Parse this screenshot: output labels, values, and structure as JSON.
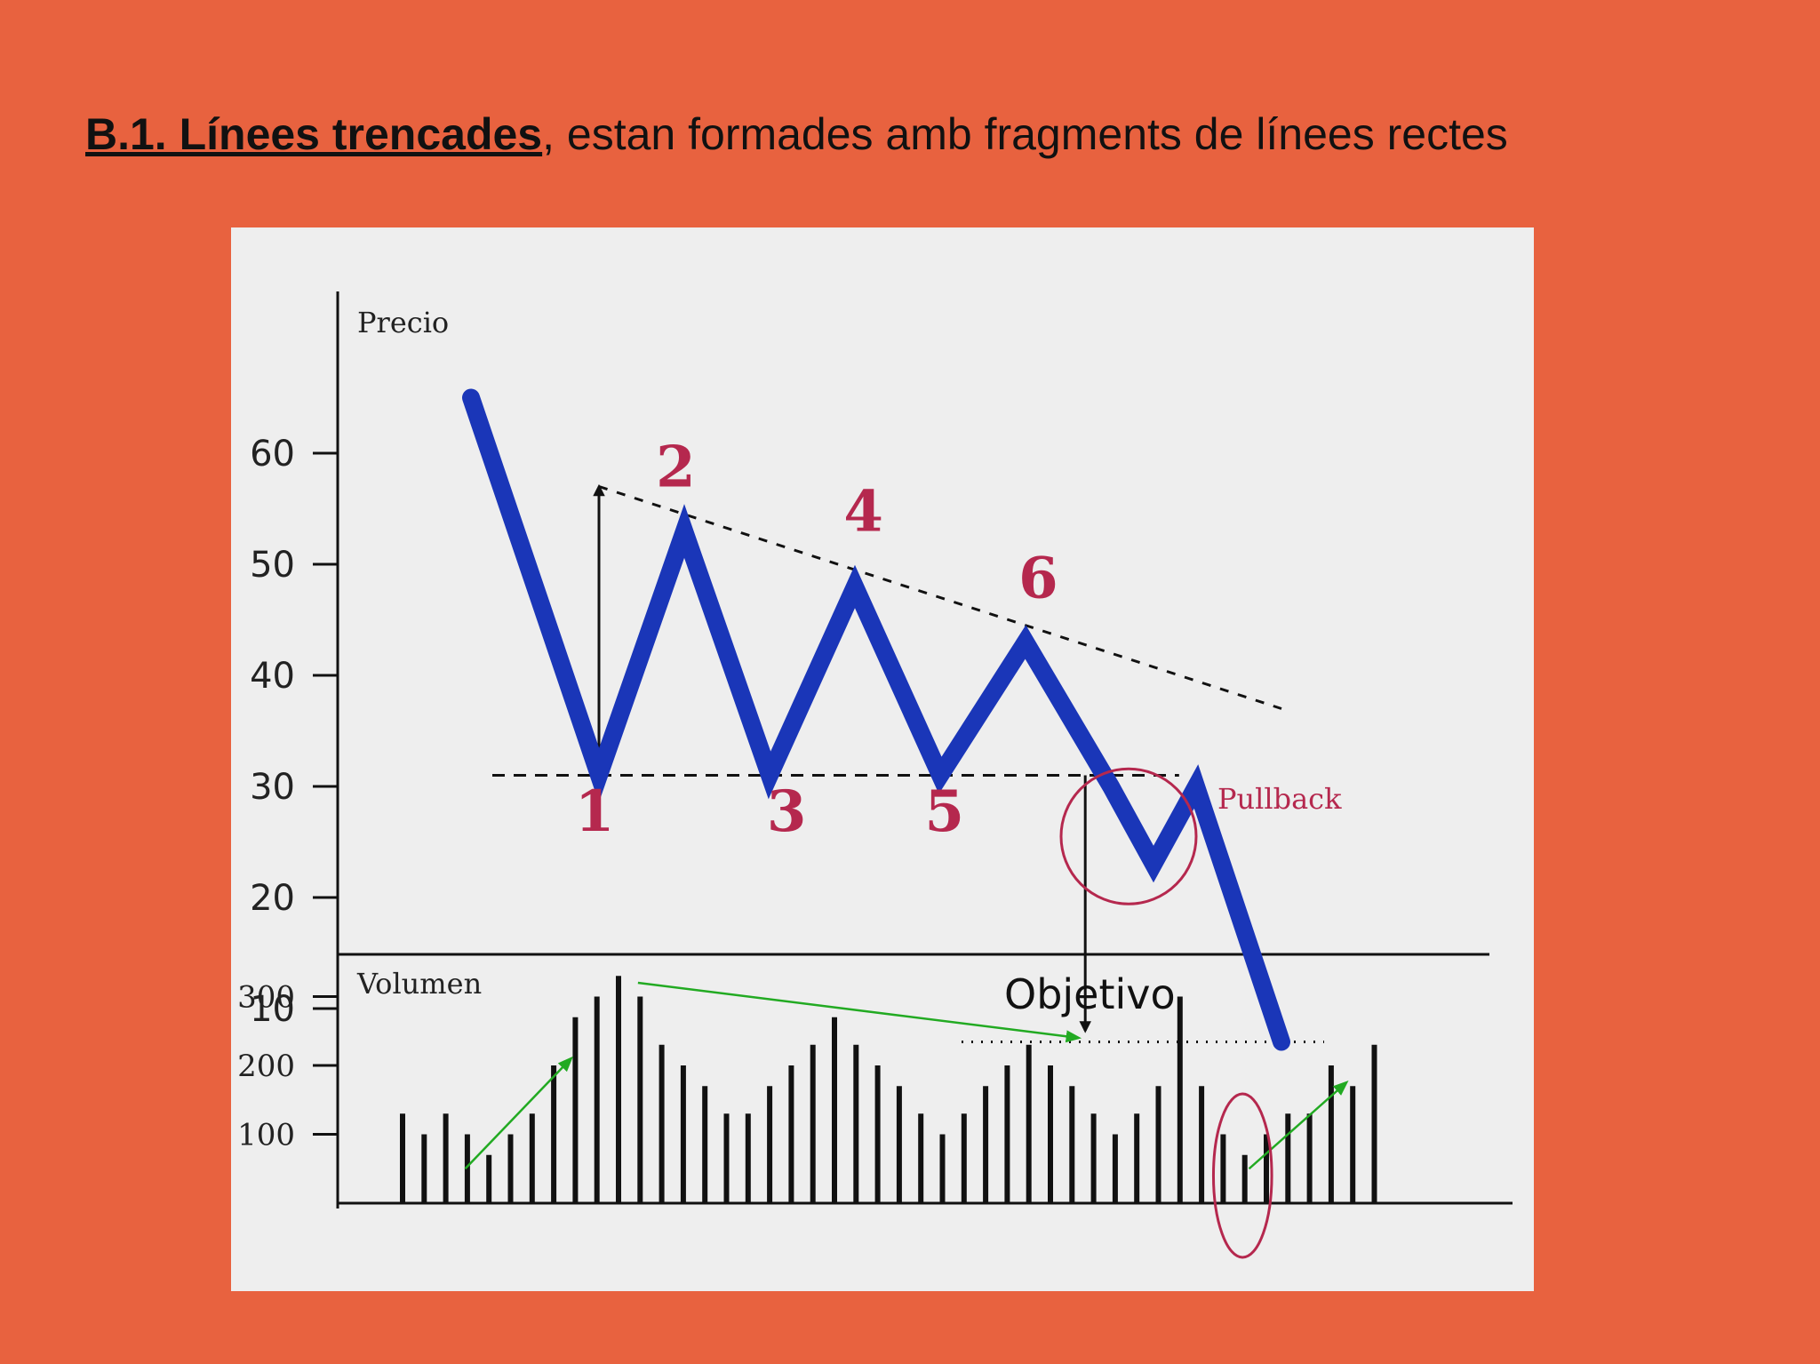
{
  "slide": {
    "heading_bold": "B.1. Línees trencades",
    "heading_rest": ", estan formades amb fragments de línees rectes"
  },
  "colors": {
    "background": "#e8623f",
    "panel": "#eeeeee",
    "price_line": "#1a36b8",
    "annotation": "#b5284e",
    "volume_arrow": "#22aa22"
  },
  "chart_data": [
    {
      "type": "line",
      "ylabel": "Precio",
      "ylim": [
        0,
        65
      ],
      "yticks": [
        60,
        50,
        40,
        30,
        20,
        10
      ],
      "grid": false,
      "series": [
        {
          "points": [
            [
              0,
              65
            ],
            [
              3,
              31
            ],
            [
              5,
              53
            ],
            [
              7,
              31
            ],
            [
              9,
              48
            ],
            [
              11,
              31
            ],
            [
              13,
              43
            ],
            [
              15,
              30
            ],
            [
              16,
              23
            ],
            [
              17,
              30
            ],
            [
              19,
              7
            ]
          ]
        }
      ],
      "resistance_line": [
        [
          3,
          57
        ],
        [
          19,
          37
        ]
      ],
      "support_line": {
        "y": 31,
        "x_range": [
          0.5,
          16.6
        ]
      },
      "target_line": {
        "y": 7,
        "x_range": [
          11.5,
          20
        ]
      },
      "measure_up_arrow": {
        "x": 3,
        "from": 31,
        "to": 57
      },
      "measure_down_arrow": {
        "x": 14.4,
        "from": 31,
        "to": 8
      },
      "pivot_labels": [
        {
          "label": "1",
          "x": 2.9,
          "y": 26
        },
        {
          "label": "2",
          "x": 4.8,
          "y": 57
        },
        {
          "label": "3",
          "x": 7.4,
          "y": 26
        },
        {
          "label": "4",
          "x": 9.2,
          "y": 53
        },
        {
          "label": "5",
          "x": 11.1,
          "y": 26
        },
        {
          "label": "6",
          "x": 13.3,
          "y": 47
        }
      ],
      "annotations": [
        {
          "text": "Pullback",
          "x": 17.5,
          "y": 28
        },
        {
          "text": "Objetivo",
          "x": 12.5,
          "y": 10
        }
      ]
    },
    {
      "type": "bar",
      "ylabel": "Volumen",
      "ylim": [
        0,
        380
      ],
      "yticks": [
        300,
        200,
        100
      ],
      "values": [
        130,
        100,
        130,
        100,
        70,
        100,
        130,
        200,
        270,
        300,
        330,
        300,
        230,
        200,
        170,
        130,
        130,
        170,
        200,
        230,
        270,
        230,
        200,
        170,
        130,
        100,
        130,
        170,
        200,
        230,
        200,
        170,
        130,
        100,
        130,
        170,
        300,
        170,
        100,
        70,
        100,
        130,
        130,
        200,
        170,
        230
      ],
      "trend_arrows": [
        {
          "from": [
            2.9,
            50
          ],
          "to": [
            7.8,
            210
          ]
        },
        {
          "from": [
            10.9,
            320
          ],
          "to": [
            31.3,
            240
          ]
        },
        {
          "from": [
            39.2,
            50
          ],
          "to": [
            43.7,
            175
          ]
        }
      ],
      "highlight_ellipse": {
        "center": [
          38.9,
          40
        ],
        "rx_bars": 1.35,
        "ry": 92
      }
    }
  ]
}
